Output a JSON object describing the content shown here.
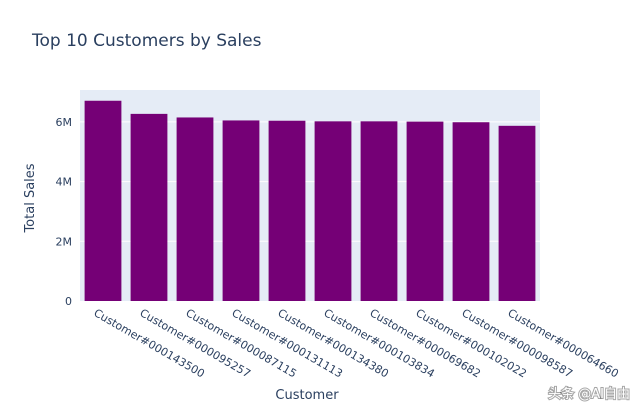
{
  "chart_data": {
    "type": "bar",
    "title": "Top 10 Customers by Sales",
    "xlabel": "Customer",
    "ylabel": "Total Sales",
    "categories": [
      "Customer#000143500",
      "Customer#000095257",
      "Customer#000087115",
      "Customer#000131113",
      "Customer#000134380",
      "Customer#000103834",
      "Customer#000069682",
      "Customer#000102022",
      "Customer#000098587",
      "Customer#000064660"
    ],
    "values": [
      6710000,
      6270000,
      6150000,
      6050000,
      6040000,
      6020000,
      6020000,
      6010000,
      5990000,
      5870000
    ],
    "ylim": [
      0,
      7070000
    ],
    "yticks": [
      0,
      2000000,
      4000000,
      6000000
    ],
    "ytick_labels": [
      "0",
      "2M",
      "4M",
      "6M"
    ],
    "bar_color": "#750076",
    "plot_bg": "#e5ecf6",
    "grid": true,
    "legend": "none"
  },
  "watermark": "头条 @AI自由"
}
